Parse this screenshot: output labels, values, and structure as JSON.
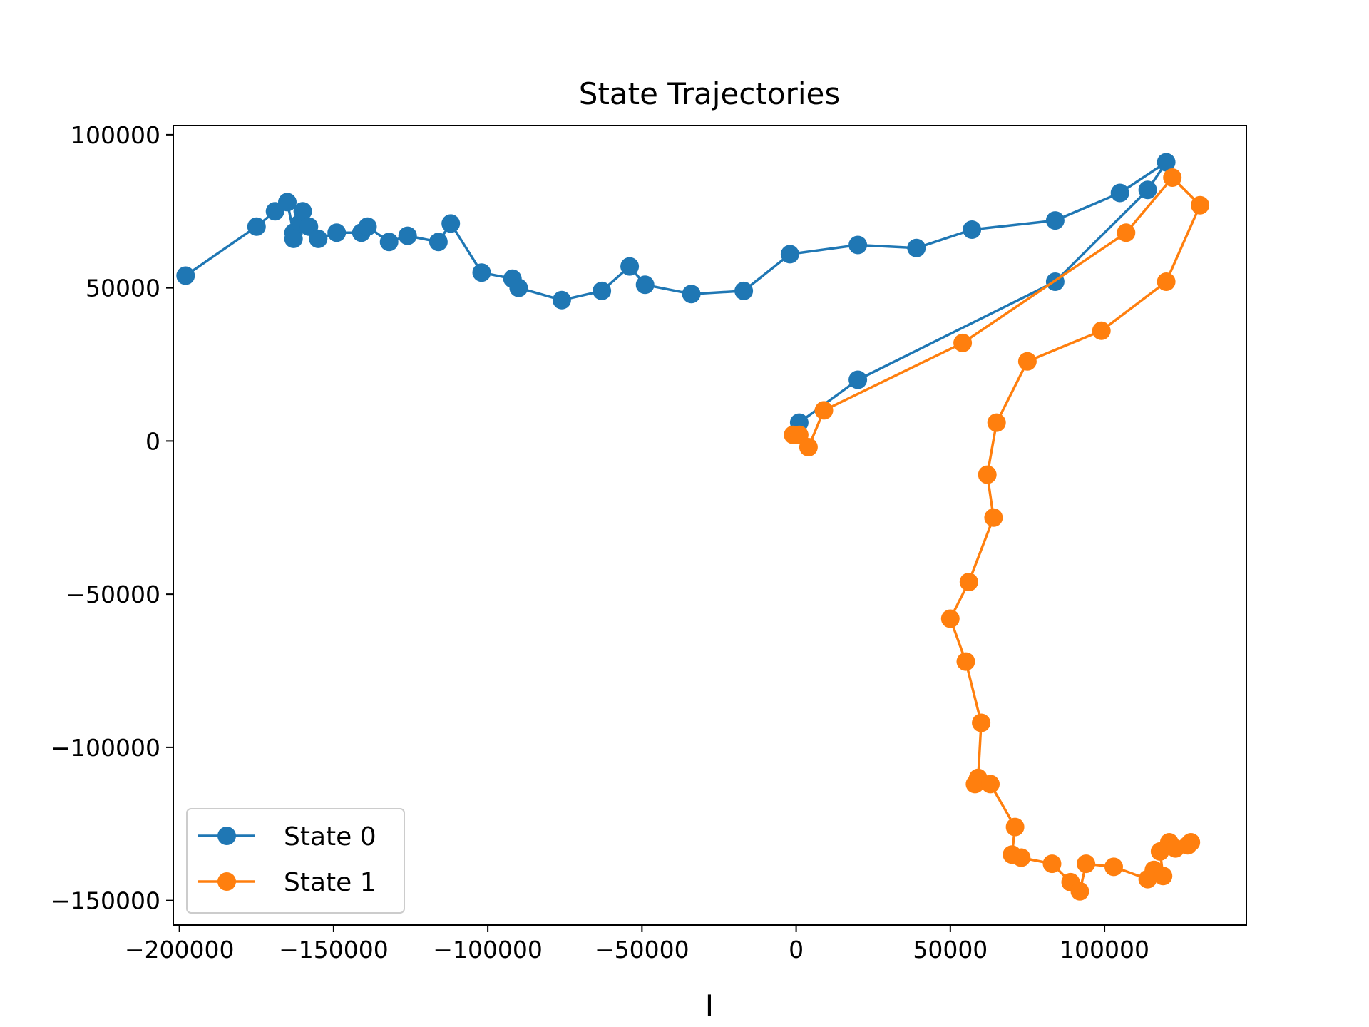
{
  "chart_data": {
    "type": "line",
    "title": "State Trajectories",
    "xlabel": "I",
    "ylabel": "",
    "xlim": [
      -202000,
      146000
    ],
    "ylim": [
      -158000,
      103000
    ],
    "xticks": [
      -200000,
      -150000,
      -100000,
      -50000,
      0,
      50000,
      100000
    ],
    "xtick_labels": [
      "−200000",
      "−150000",
      "−100000",
      "−50000",
      "0",
      "50000",
      "100000"
    ],
    "yticks": [
      -150000,
      -100000,
      -50000,
      0,
      50000,
      100000
    ],
    "ytick_labels": [
      "−150000",
      "−100000",
      "−50000",
      "0",
      "50000",
      "100000"
    ],
    "grid": false,
    "legend": "lower-left",
    "series": [
      {
        "name": "State 0",
        "color": "#1f77b4",
        "x": [
          -198000,
          -175000,
          -169000,
          -165000,
          -163000,
          -161000,
          -160000,
          -163000,
          -158000,
          -155000,
          -149000,
          -141000,
          -139000,
          -132000,
          -126000,
          -116000,
          -112000,
          -102000,
          -92000,
          -90000,
          -76000,
          -63000,
          -54000,
          -49000,
          -34000,
          -17000,
          -2000,
          20000,
          39000,
          57000,
          84000,
          105000,
          120000,
          114000,
          84000,
          20000,
          1000
        ],
        "y": [
          54000,
          70000,
          75000,
          78000,
          68000,
          71000,
          75000,
          66000,
          70000,
          66000,
          68000,
          68000,
          70000,
          65000,
          67000,
          65000,
          71000,
          55000,
          53000,
          50000,
          46000,
          49000,
          57000,
          51000,
          48000,
          49000,
          61000,
          64000,
          63000,
          69000,
          72000,
          81000,
          91000,
          82000,
          52000,
          20000,
          6000
        ]
      },
      {
        "name": "State 1",
        "color": "#ff7f0e",
        "x": [
          -1000,
          1000,
          4000,
          9000,
          54000,
          107000,
          122000,
          131000,
          120000,
          99000,
          75000,
          65000,
          62000,
          64000,
          56000,
          50000,
          55000,
          60000,
          59000,
          58000,
          63000,
          71000,
          70000,
          73000,
          83000,
          89000,
          92000,
          94000,
          103000,
          114000,
          116000,
          119000,
          118000,
          121000,
          123000,
          128000,
          127000
        ],
        "y": [
          2000,
          2000,
          -2000,
          10000,
          32000,
          68000,
          86000,
          77000,
          52000,
          36000,
          26000,
          6000,
          -11000,
          -25000,
          -46000,
          -58000,
          -72000,
          -92000,
          -110000,
          -112000,
          -112000,
          -126000,
          -135000,
          -136000,
          -138000,
          -144000,
          -147000,
          -138000,
          -139000,
          -143000,
          -140000,
          -142000,
          -134000,
          -131000,
          -133000,
          -131000,
          -132000
        ]
      }
    ]
  }
}
